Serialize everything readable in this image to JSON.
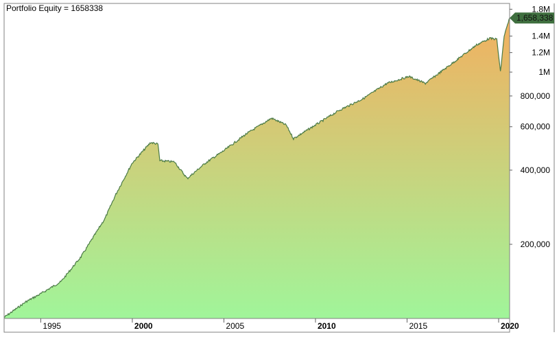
{
  "chart_data": {
    "type": "area",
    "title": "Portfolio Equity = 1658338",
    "y_scale": "log",
    "ylim": [
      100000,
      1900000
    ],
    "xlim": [
      1993.0,
      2020.6
    ],
    "x_ticks": [
      {
        "label": "1995",
        "value": 1995,
        "bold": false
      },
      {
        "label": "2000",
        "value": 2000,
        "bold": true
      },
      {
        "label": "2005",
        "value": 2005,
        "bold": false
      },
      {
        "label": "2010",
        "value": 2010,
        "bold": true
      },
      {
        "label": "2015",
        "value": 2015,
        "bold": false
      },
      {
        "label": "2020",
        "value": 2020,
        "bold": true
      }
    ],
    "y_ticks": [
      {
        "label": "200,000",
        "value": 200000
      },
      {
        "label": "400,000",
        "value": 400000
      },
      {
        "label": "600,000",
        "value": 600000
      },
      {
        "label": "800,000",
        "value": 800000
      },
      {
        "label": "1M",
        "value": 1000000
      },
      {
        "label": "1.2M",
        "value": 1200000
      },
      {
        "label": "1.4M",
        "value": 1400000
      },
      {
        "label": "1.8M",
        "value": 1800000
      }
    ],
    "last_value_label": "1,658,338",
    "last_value": 1658338,
    "series": [
      {
        "x": [
          1993.0,
          1994.2,
          1995.0,
          1996.1,
          1997.2,
          1998.5,
          1999.1,
          2000.0,
          2001.0,
          2001.4,
          2001.5,
          2002.3,
          2003.0,
          2004.0,
          2005.0,
          2006.2,
          2007.6,
          2008.4,
          2008.8,
          2010.0,
          2011.3,
          2012.6,
          2013.9,
          2015.1,
          2016.0,
          2017.5,
          2018.8,
          2019.5,
          2019.9,
          2020.1,
          2020.3,
          2020.6
        ],
        "values": [
          101000,
          117000,
          126000,
          141000,
          178000,
          254000,
          319000,
          428000,
          518000,
          510000,
          437000,
          432000,
          370000,
          428000,
          480000,
          560000,
          650000,
          610000,
          537000,
          610000,
          700000,
          780000,
          900000,
          960000,
          900000,
          1090000,
          1290000,
          1370000,
          1360000,
          1000000,
          1400000,
          1658338
        ]
      }
    ],
    "colors": {
      "line": "#4a7a46",
      "fill_top": "#f2b060",
      "fill_bottom": "#a0f59a",
      "label_bg": "#3f6f3f"
    },
    "grid": false
  }
}
